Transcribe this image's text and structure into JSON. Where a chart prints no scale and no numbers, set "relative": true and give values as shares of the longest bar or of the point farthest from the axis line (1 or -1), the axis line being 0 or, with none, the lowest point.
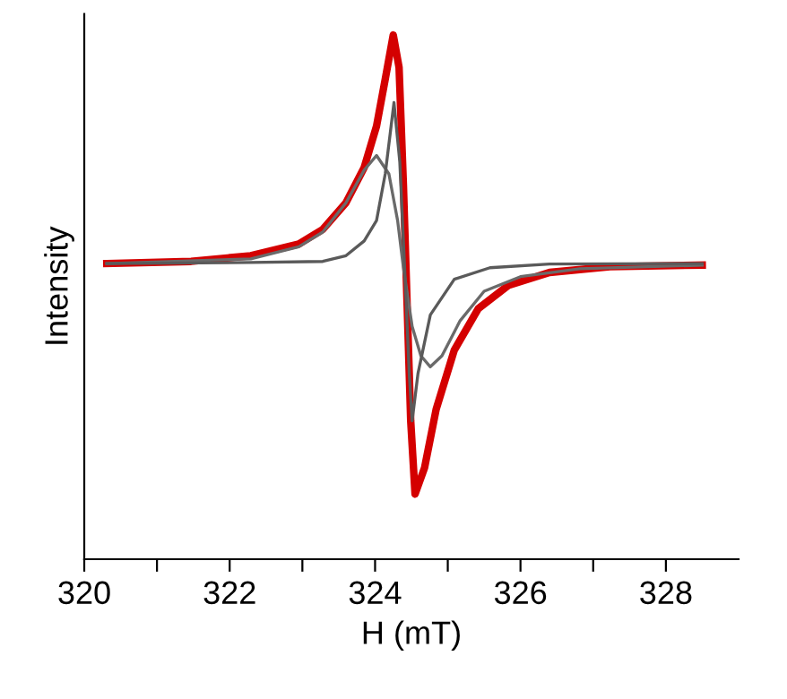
{
  "chart_data": {
    "type": "line",
    "xlabel": "H (mT)",
    "ylabel": "Intensity",
    "relative": true,
    "xlim": [
      320,
      329
    ],
    "xticks": [
      320,
      {
        "value": 321,
        "label": null
      },
      322,
      {
        "value": 323,
        "label": null
      },
      324,
      {
        "value": 325,
        "label": null
      },
      326,
      {
        "value": 327,
        "label": null
      },
      328
    ],
    "grid": false,
    "legend": false,
    "tick_labels": "x",
    "line_style": "solid",
    "marker": "none",
    "series": [
      {
        "color": "#d40000",
        "x": [
          320.31,
          321.47,
          322.29,
          322.95,
          323.28,
          323.6,
          323.85,
          324.02,
          324.14,
          324.25,
          324.33,
          324.39,
          324.44,
          324.49,
          324.55,
          324.68,
          324.84,
          325.09,
          325.42,
          325.83,
          326.4,
          327.23,
          328.5
        ],
        "values": [
          0.564,
          0.568,
          0.579,
          0.601,
          0.629,
          0.68,
          0.747,
          0.826,
          0.916,
          1.0,
          0.938,
          0.714,
          0.489,
          0.264,
          0.124,
          0.174,
          0.286,
          0.399,
          0.478,
          0.522,
          0.547,
          0.558,
          0.561
        ]
      },
      {
        "color": "#5a5a5a",
        "x": [
          320.31,
          322.29,
          323.28,
          323.6,
          323.85,
          324.02,
          324.14,
          324.26,
          324.34,
          324.41,
          324.47,
          324.51,
          324.59,
          324.76,
          325.09,
          325.58,
          326.4,
          328.5
        ],
        "values": [
          0.564,
          0.566,
          0.568,
          0.579,
          0.607,
          0.646,
          0.735,
          0.871,
          0.758,
          0.545,
          0.354,
          0.264,
          0.354,
          0.466,
          0.534,
          0.556,
          0.563,
          0.564
        ]
      },
      {
        "color": "#6a6a6a",
        "x": [
          320.31,
          322.29,
          322.95,
          323.28,
          323.6,
          323.85,
          324.02,
          324.19,
          324.31,
          324.39,
          324.51,
          324.63,
          324.76,
          324.92,
          325.17,
          325.5,
          326.0,
          326.82,
          328.5
        ],
        "values": [
          0.564,
          0.573,
          0.596,
          0.624,
          0.68,
          0.742,
          0.77,
          0.735,
          0.646,
          0.556,
          0.444,
          0.388,
          0.367,
          0.388,
          0.455,
          0.511,
          0.539,
          0.554,
          0.561
        ]
      }
    ]
  }
}
